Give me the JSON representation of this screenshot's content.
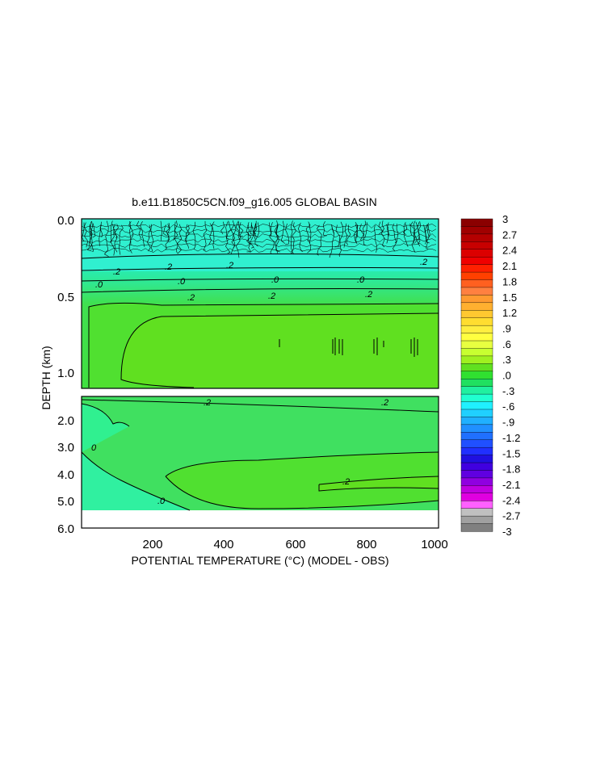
{
  "chart_data": {
    "type": "heatmap",
    "title": "b.e11.B1850C5CN.f09_g16.005 GLOBAL BASIN",
    "xlabel": "POTENTIAL TEMPERATURE (°C) (MODEL - OBS)",
    "ylabel": "DEPTH (km)",
    "xlim": [
      0,
      1000
    ],
    "x_ticks": [
      "200",
      "400",
      "600",
      "800",
      "1000"
    ],
    "y_ticks_upper": [
      "0.0",
      "0.5",
      "1.0"
    ],
    "y_ticks_lower": [
      "2.0",
      "3.0",
      "4.0",
      "5.0",
      "6.0"
    ],
    "ylim_upper": [
      0.0,
      1.1
    ],
    "ylim_lower": [
      1.1,
      6.0
    ],
    "contour_labels_upper": [
      ".2",
      ".2",
      ".2",
      ".2",
      ".0",
      ".0",
      ".0",
      ".0",
      ".2",
      ".2",
      ".2"
    ],
    "contour_labels_lower": [
      ".2",
      ".2",
      "0",
      ".2",
      ".0"
    ],
    "colorbar": {
      "labels": [
        "3",
        "2.7",
        "2.4",
        "2.1",
        "1.8",
        "1.5",
        "1.2",
        ".9",
        ".6",
        ".3",
        ".0",
        "-.3",
        "-.6",
        "-.9",
        "-1.2",
        "-1.5",
        "-1.8",
        "-2.1",
        "-2.4",
        "-2.7",
        "-3"
      ],
      "colors": [
        "#8b0000",
        "#a00000",
        "#b40000",
        "#c80000",
        "#dc0000",
        "#f00000",
        "#ff2000",
        "#ff4000",
        "#ff6020",
        "#ff8040",
        "#ff9a30",
        "#ffb030",
        "#ffc830",
        "#ffdd30",
        "#ffee40",
        "#ffff40",
        "#e8ff40",
        "#c8ff30",
        "#a0f020",
        "#60e020",
        "#30e030",
        "#20e060",
        "#20f0a0",
        "#20ffd0",
        "#20f0ff",
        "#20d0ff",
        "#20b0ff",
        "#2090ff",
        "#2070ff",
        "#2050ff",
        "#2030ff",
        "#2010e0",
        "#4000e0",
        "#6000e0",
        "#9000e0",
        "#c000e0",
        "#e000e0",
        "#ff60ff",
        "#c0c0c0",
        "#a0a0a0",
        "#808080"
      ]
    }
  }
}
